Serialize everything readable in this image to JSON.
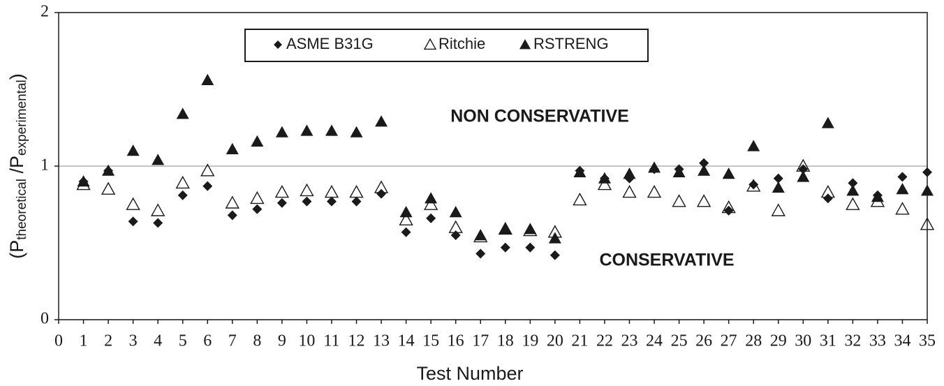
{
  "chart_data": {
    "type": "scatter",
    "xlabel": "Test  Number",
    "ylabel_parts": [
      "(P",
      "theoretical",
      " /P",
      "experimental",
      ")"
    ],
    "annotations": [
      "NON CONSERVATIVE",
      "CONSERVATIVE"
    ],
    "x": [
      1,
      2,
      3,
      4,
      5,
      6,
      7,
      8,
      9,
      10,
      11,
      12,
      13,
      14,
      15,
      16,
      17,
      18,
      19,
      20,
      21,
      22,
      23,
      24,
      25,
      26,
      27,
      28,
      29,
      30,
      31,
      32,
      33,
      34,
      35
    ],
    "series": [
      {
        "name": "ASME B31G",
        "marker": "diamond",
        "color": "#1a1a1a",
        "values": [
          0.9,
          0.97,
          0.64,
          0.63,
          0.81,
          0.87,
          0.68,
          0.72,
          0.76,
          0.77,
          0.77,
          0.77,
          0.82,
          0.57,
          0.66,
          0.55,
          0.43,
          0.47,
          0.47,
          0.42,
          0.97,
          0.92,
          0.92,
          0.98,
          0.98,
          1.02,
          0.71,
          0.88,
          0.92,
          0.98,
          0.79,
          0.89,
          0.81,
          0.93,
          0.96
        ]
      },
      {
        "name": "Ritchie",
        "marker": "triangle-open",
        "color": "#1a1a1a",
        "values": [
          0.88,
          0.85,
          0.75,
          0.71,
          0.89,
          0.97,
          0.76,
          0.79,
          0.83,
          0.84,
          0.83,
          0.83,
          0.86,
          0.65,
          0.75,
          0.6,
          0.54,
          0.59,
          0.58,
          0.57,
          0.78,
          0.88,
          0.83,
          0.83,
          0.77,
          0.77,
          0.73,
          0.87,
          0.71,
          1.0,
          0.83,
          0.75,
          0.77,
          0.72,
          0.62
        ]
      },
      {
        "name": "RSTRENG",
        "marker": "triangle",
        "color": "#1a1a1a",
        "values": [
          0.9,
          0.97,
          1.1,
          1.04,
          1.34,
          1.56,
          1.11,
          1.16,
          1.22,
          1.23,
          1.23,
          1.22,
          1.29,
          0.7,
          0.79,
          0.7,
          0.55,
          0.59,
          0.59,
          0.53,
          0.96,
          0.92,
          0.95,
          0.99,
          0.96,
          0.97,
          0.95,
          1.13,
          0.86,
          0.93,
          1.28,
          0.84,
          0.8,
          0.85,
          0.84
        ]
      }
    ],
    "xlim": [
      0,
      35
    ],
    "xticks": [
      0,
      1,
      2,
      3,
      4,
      5,
      6,
      7,
      8,
      9,
      10,
      11,
      12,
      13,
      14,
      15,
      16,
      17,
      18,
      19,
      20,
      21,
      22,
      23,
      24,
      25,
      26,
      27,
      28,
      29,
      30,
      31,
      32,
      33,
      34,
      35
    ],
    "ylim": [
      0,
      2
    ],
    "yticks": [
      0,
      1,
      2
    ],
    "grid": true
  }
}
